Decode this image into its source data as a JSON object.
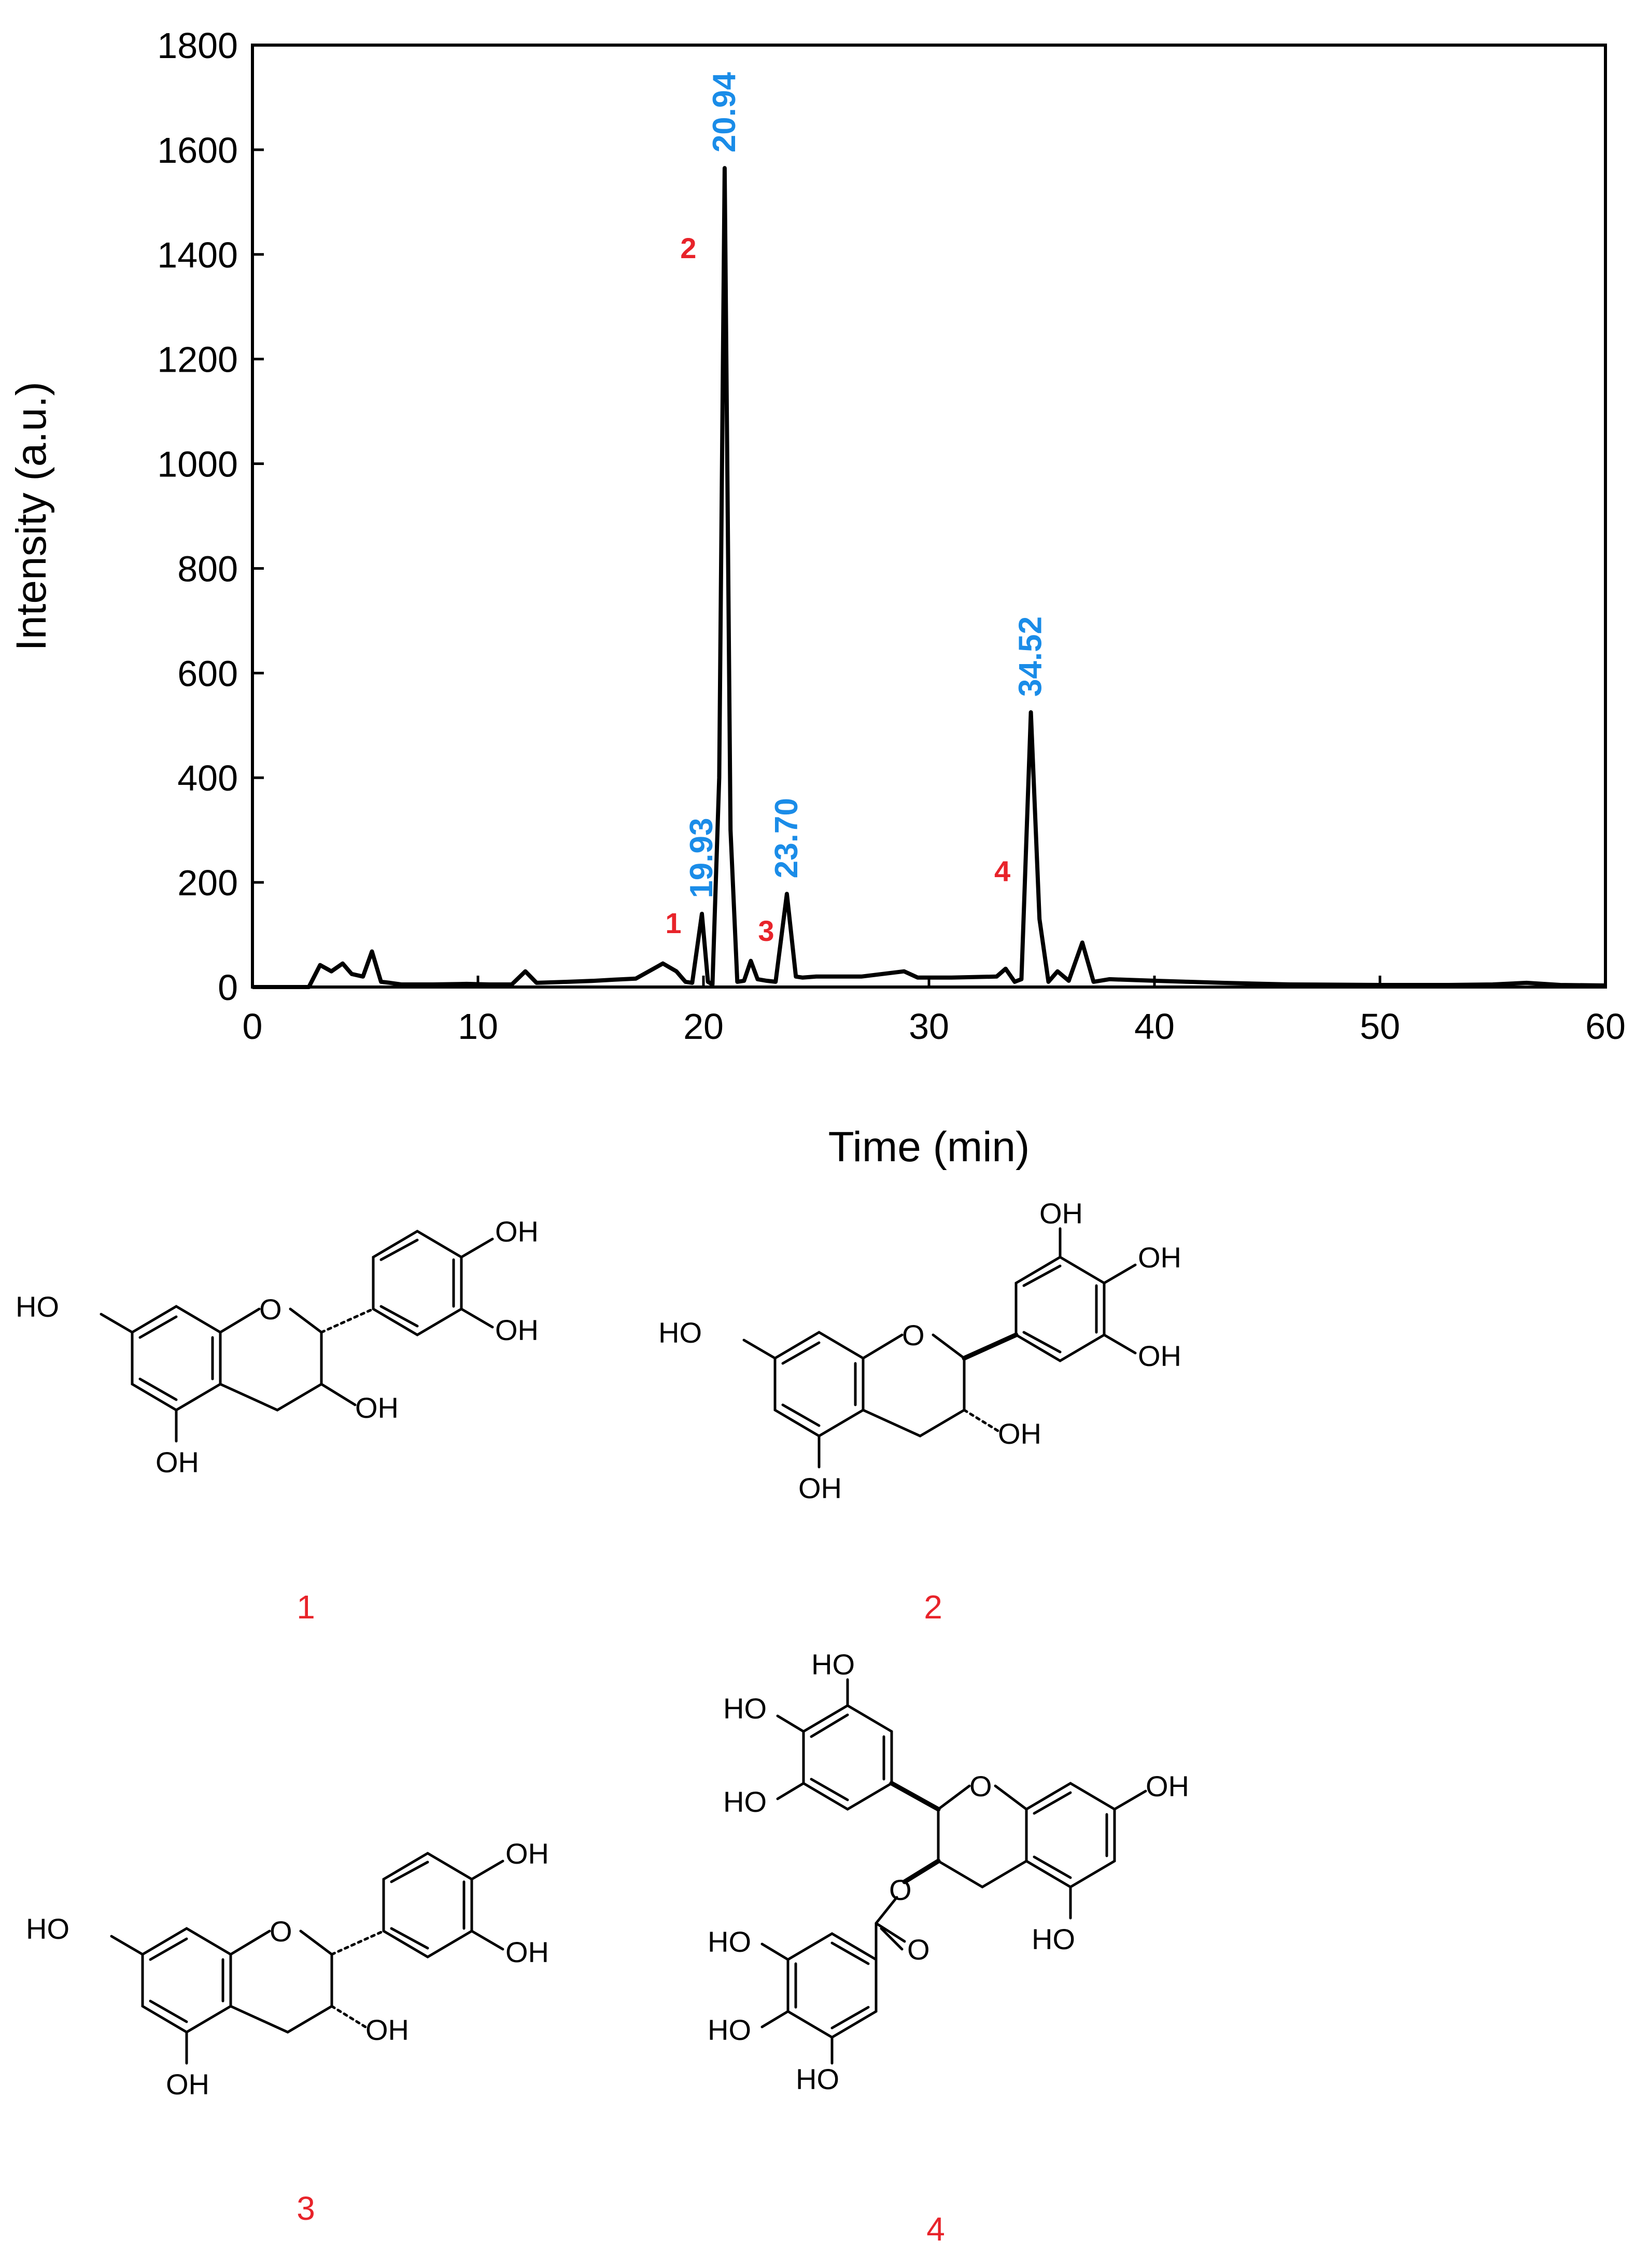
{
  "chart_data": {
    "type": "line",
    "xlabel": "Time (min)",
    "ylabel": "Intensity (a.u.)",
    "xlim": [
      0,
      60
    ],
    "ylim": [
      0,
      1800
    ],
    "xticks": [
      0,
      10,
      20,
      30,
      40,
      50,
      60
    ],
    "yticks": [
      0,
      200,
      400,
      600,
      800,
      1000,
      1200,
      1400,
      1600,
      1800
    ],
    "grid": false,
    "legend": "none",
    "series": [
      {
        "color": "#000000",
        "x": [
          0,
          2.5,
          3.0,
          3.5,
          4.0,
          4.4,
          4.9,
          5.3,
          5.7,
          6.1,
          6.6,
          8.0,
          9.5,
          10.5,
          11.5,
          12.1,
          12.6,
          14.0,
          15.2,
          16.0,
          17.0,
          18.2,
          18.8,
          19.2,
          19.5,
          19.93,
          20.2,
          20.4,
          20.7,
          20.94,
          21.2,
          21.5,
          21.8,
          22.1,
          22.4,
          22.8,
          23.2,
          23.7,
          24.1,
          24.4,
          25.0,
          27.0,
          28.9,
          29.5,
          31.0,
          33.0,
          33.4,
          33.8,
          34.1,
          34.52,
          34.9,
          35.3,
          35.7,
          36.2,
          36.8,
          37.3,
          38.0,
          40.0,
          41.5,
          43.0,
          46.0,
          50.0,
          53.0,
          55.0,
          56.5,
          58.0,
          60.0
        ],
        "y": [
          0,
          0,
          42,
          30,
          45,
          25,
          20,
          68,
          10,
          8,
          5,
          5,
          6,
          5,
          5,
          30,
          8,
          10,
          12,
          14,
          16,
          45,
          30,
          10,
          8,
          140,
          10,
          5,
          400,
          1565,
          300,
          10,
          12,
          50,
          15,
          12,
          10,
          178,
          20,
          18,
          20,
          20,
          30,
          18,
          18,
          20,
          35,
          10,
          15,
          525,
          130,
          10,
          30,
          12,
          85,
          10,
          15,
          12,
          10,
          8,
          5,
          4,
          4,
          5,
          8,
          4,
          3
        ]
      }
    ],
    "annotations": [
      {
        "text": "19.93",
        "x": 19.93,
        "y": 140,
        "color": "#1a8ce8"
      },
      {
        "text": "20.94",
        "x": 20.94,
        "y": 1565,
        "color": "#1a8ce8"
      },
      {
        "text": "23.70",
        "x": 23.7,
        "y": 178,
        "color": "#1a8ce8"
      },
      {
        "text": "34.52",
        "x": 34.52,
        "y": 525,
        "color": "#1a8ce8"
      }
    ],
    "peak_labels": [
      {
        "text": "1",
        "x": 19.93,
        "color": "#e8232a"
      },
      {
        "text": "2",
        "x": 20.94,
        "color": "#e8232a"
      },
      {
        "text": "3",
        "x": 23.7,
        "color": "#e8232a"
      },
      {
        "text": "4",
        "x": 34.52,
        "color": "#e8232a"
      }
    ]
  },
  "structures": {
    "atoms": {
      "oh": "OH",
      "ho": "HO",
      "o": "O"
    },
    "labels": [
      "1",
      "2",
      "3",
      "4"
    ]
  }
}
